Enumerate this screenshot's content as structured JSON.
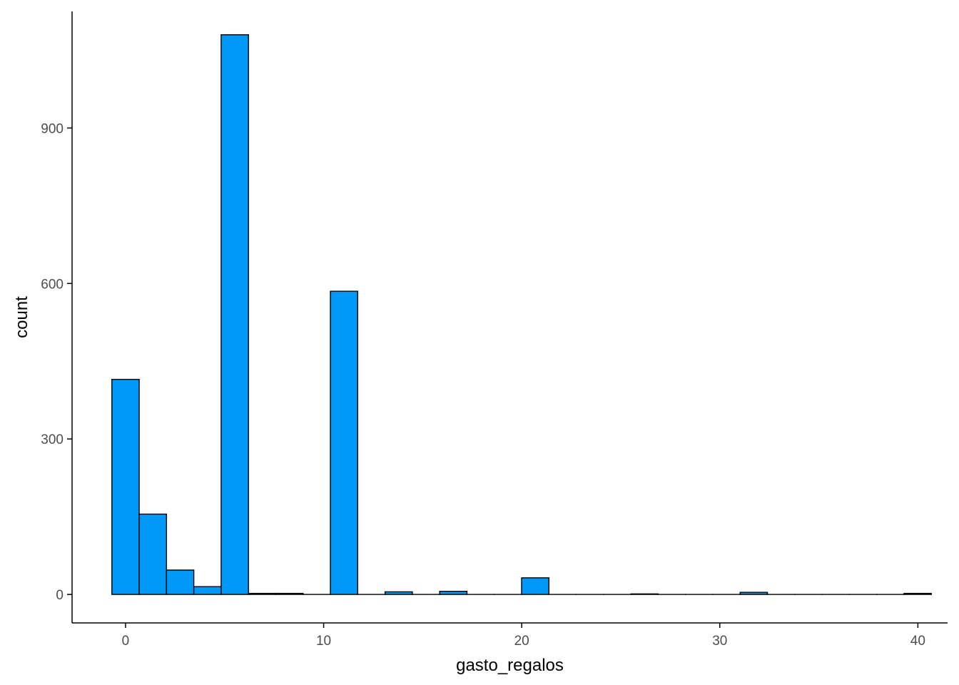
{
  "chart_data": {
    "type": "bar",
    "subtype": "histogram",
    "xlabel": "gasto_regalos",
    "ylabel": "count",
    "title": "",
    "bin_width": 1.379,
    "bin_start": -0.69,
    "counts": [
      415,
      155,
      47,
      15,
      1080,
      2,
      2,
      0,
      585,
      0,
      5,
      0,
      6,
      0,
      0,
      32,
      0,
      0,
      0,
      1,
      0,
      0,
      0,
      4,
      0,
      0,
      0,
      0,
      0,
      2
    ],
    "xlim": [
      -2.7,
      41.5
    ],
    "ylim": [
      -55,
      1125
    ],
    "x_ticks": [
      0,
      10,
      20,
      30,
      40
    ],
    "x_tick_labels": [
      "0",
      "10",
      "20",
      "30",
      "40"
    ],
    "y_ticks": [
      0,
      300,
      600,
      900
    ],
    "y_tick_labels": [
      "0",
      "300",
      "600",
      "900"
    ],
    "grid": false,
    "legend": "none",
    "colors": {
      "fill": "#0099f8",
      "stroke": "#000000",
      "axis": "#000000"
    }
  }
}
